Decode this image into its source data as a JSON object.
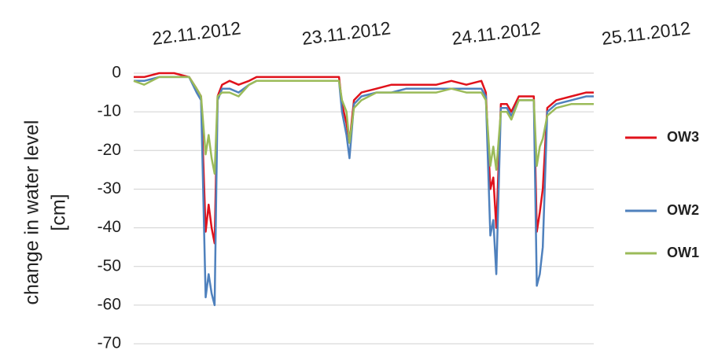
{
  "chart_data": {
    "type": "line",
    "ylabel": [
      "change in water level",
      "[cm]"
    ],
    "x": [
      -0.42,
      -0.35,
      -0.25,
      -0.15,
      -0.05,
      0.0,
      0.03,
      0.06,
      0.08,
      0.1,
      0.12,
      0.14,
      0.17,
      0.22,
      0.28,
      0.35,
      0.4,
      0.5,
      0.6,
      0.7,
      0.8,
      0.9,
      0.95,
      0.97,
      1.0,
      1.02,
      1.05,
      1.1,
      1.2,
      1.3,
      1.4,
      1.5,
      1.6,
      1.7,
      1.8,
      1.9,
      1.93,
      1.96,
      1.98,
      2.0,
      2.03,
      2.07,
      2.1,
      2.15,
      2.2,
      2.25,
      2.27,
      2.29,
      2.31,
      2.34,
      2.4,
      2.5,
      2.6,
      2.65
    ],
    "series": [
      {
        "name": "OW3",
        "color": "#e0121b",
        "values": [
          -1,
          -1,
          0,
          0,
          -1,
          -4,
          -6,
          -41,
          -34,
          -40,
          -44,
          -6,
          -3,
          -2,
          -3,
          -2,
          -1,
          -1,
          -1,
          -1,
          -1,
          -1,
          -1,
          -8,
          -13,
          -18,
          -7,
          -5,
          -4,
          -3,
          -3,
          -3,
          -3,
          -2,
          -3,
          -2,
          -5,
          -30,
          -27,
          -40,
          -8,
          -8,
          -10,
          -6,
          -6,
          -6,
          -41,
          -36,
          -30,
          -9,
          -7,
          -6,
          -5,
          -5
        ]
      },
      {
        "name": "OW2",
        "color": "#4f81bd",
        "values": [
          -2,
          -2,
          -1,
          -1,
          -1,
          -5,
          -7,
          -58,
          -52,
          -57,
          -60,
          -7,
          -4,
          -4,
          -5,
          -3,
          -2,
          -2,
          -2,
          -2,
          -2,
          -2,
          -2,
          -10,
          -16,
          -22,
          -8,
          -6,
          -5,
          -5,
          -4,
          -4,
          -4,
          -4,
          -4,
          -4,
          -6,
          -42,
          -38,
          -52,
          -9,
          -9,
          -11,
          -7,
          -7,
          -7,
          -55,
          -52,
          -45,
          -10,
          -8,
          -7,
          -6,
          -6
        ]
      },
      {
        "name": "OW1",
        "color": "#9bbb59",
        "values": [
          -2,
          -3,
          -1,
          -1,
          -1,
          -4,
          -6,
          -21,
          -16,
          -22,
          -26,
          -6,
          -5,
          -5,
          -6,
          -3,
          -2,
          -2,
          -2,
          -2,
          -2,
          -2,
          -2,
          -7,
          -10,
          -18,
          -9,
          -7,
          -5,
          -5,
          -5,
          -5,
          -5,
          -4,
          -5,
          -5,
          -7,
          -24,
          -19,
          -25,
          -10,
          -10,
          -12,
          -7,
          -7,
          -7,
          -24,
          -19,
          -17,
          -11,
          -9,
          -8,
          -8,
          -8
        ]
      }
    ],
    "xlim": [
      -0.42,
      2.65
    ],
    "xticks": [
      {
        "value": 0,
        "label": "22.11.2012"
      },
      {
        "value": 1,
        "label": "23.11.2012"
      },
      {
        "value": 2,
        "label": "24.11.2012"
      },
      {
        "value": 3,
        "label": "25.11.2012"
      }
    ],
    "ylim": [
      -70,
      0
    ],
    "yticks": [
      0,
      -10,
      -20,
      -30,
      -40,
      -50,
      -60,
      -70
    ],
    "grid": true,
    "legend": "right"
  }
}
